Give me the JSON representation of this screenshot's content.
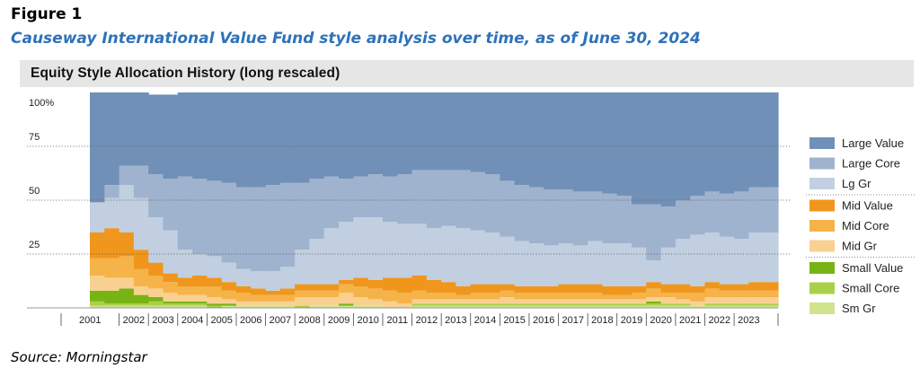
{
  "figure_label": "Figure 1",
  "figure_title": "Causeway International Value Fund style analysis over time, as of June 30, 2024",
  "source": "Source: Morningstar",
  "chart_data": {
    "type": "area",
    "stacked": true,
    "title": "Equity Style Allocation History (long rescaled)",
    "xlabel": "",
    "ylabel": "",
    "ylim": [
      0,
      100
    ],
    "y_ticks": [
      "100%",
      "75",
      "50",
      "25"
    ],
    "y_tick_values": [
      100,
      75,
      50,
      25
    ],
    "grid": "dotted horizontal at 25, 50, 75",
    "legend_position": "right",
    "years": [
      "2001",
      "2002",
      "2003",
      "2004",
      "2005",
      "2006",
      "2007",
      "2008",
      "2009",
      "2010",
      "2011",
      "2012",
      "2013",
      "2014",
      "2015",
      "2016",
      "2017",
      "2018",
      "2019",
      "2020",
      "2021",
      "2022",
      "2023"
    ],
    "x": [
      "2001.0",
      "2001.5",
      "2002.0",
      "2002.5",
      "2003.0",
      "2003.5",
      "2004.0",
      "2004.5",
      "2005.0",
      "2005.5",
      "2006.0",
      "2006.5",
      "2007.0",
      "2007.5",
      "2008.0",
      "2008.5",
      "2009.0",
      "2009.5",
      "2010.0",
      "2010.5",
      "2011.0",
      "2011.5",
      "2012.0",
      "2012.5",
      "2013.0",
      "2013.5",
      "2014.0",
      "2014.5",
      "2015.0",
      "2015.5",
      "2016.0",
      "2016.5",
      "2017.0",
      "2017.5",
      "2018.0",
      "2018.5",
      "2019.0",
      "2019.5",
      "2020.0",
      "2020.5",
      "2021.0",
      "2021.5",
      "2022.0",
      "2022.5",
      "2023.0",
      "2023.5",
      "2024.0"
    ],
    "series": [
      {
        "name": "Large Value",
        "color": "#7190b8",
        "values": [
          51,
          43,
          34,
          34,
          37,
          39,
          39,
          40,
          41,
          42,
          44,
          44,
          43,
          42,
          42,
          40,
          39,
          40,
          39,
          38,
          39,
          38,
          36,
          36,
          36,
          36,
          37,
          38,
          41,
          43,
          44,
          45,
          45,
          46,
          46,
          47,
          48,
          52,
          52,
          53,
          50,
          48,
          46,
          47,
          46,
          44,
          44
        ]
      },
      {
        "name": "Large Core",
        "color": "#9fb3cf",
        "values": [
          0,
          6,
          9,
          15,
          20,
          24,
          34,
          35,
          35,
          37,
          38,
          39,
          40,
          39,
          31,
          28,
          24,
          20,
          19,
          20,
          21,
          23,
          25,
          27,
          26,
          27,
          27,
          27,
          26,
          26,
          26,
          26,
          25,
          25,
          23,
          23,
          22,
          20,
          26,
          19,
          18,
          18,
          19,
          20,
          22,
          21,
          21
        ]
      },
      {
        "name": "Lg Gr",
        "color": "#c2cfe0",
        "values": [
          14,
          14,
          22,
          24,
          21,
          20,
          13,
          10,
          10,
          9,
          8,
          8,
          9,
          10,
          16,
          21,
          26,
          27,
          28,
          29,
          26,
          25,
          24,
          24,
          26,
          27,
          25,
          24,
          22,
          21,
          20,
          19,
          19,
          18,
          20,
          20,
          20,
          18,
          10,
          17,
          21,
          24,
          23,
          22,
          21,
          23,
          23
        ]
      },
      {
        "name": "Mid Value",
        "color": "#f0961c",
        "values": [
          12,
          14,
          11,
          9,
          6,
          4,
          4,
          5,
          4,
          4,
          3,
          3,
          2,
          3,
          3,
          3,
          3,
          2,
          4,
          4,
          6,
          7,
          7,
          6,
          5,
          4,
          4,
          4,
          3,
          3,
          3,
          3,
          4,
          4,
          4,
          4,
          4,
          3,
          3,
          4,
          4,
          3,
          3,
          3,
          3,
          4,
          4
        ]
      },
      {
        "name": "Mid Core",
        "color": "#f5b34a",
        "values": [
          8,
          9,
          10,
          8,
          6,
          5,
          4,
          4,
          5,
          4,
          4,
          3,
          3,
          3,
          3,
          3,
          3,
          4,
          5,
          5,
          5,
          5,
          4,
          3,
          3,
          2,
          3,
          3,
          3,
          3,
          3,
          3,
          3,
          3,
          3,
          2,
          2,
          3,
          4,
          2,
          3,
          4,
          4,
          3,
          3,
          3,
          3
        ]
      },
      {
        "name": "Mid Gr",
        "color": "#f8d191",
        "values": [
          7,
          6,
          5,
          4,
          4,
          4,
          3,
          3,
          3,
          2,
          2,
          2,
          2,
          2,
          4,
          4,
          4,
          5,
          4,
          3,
          3,
          2,
          2,
          2,
          2,
          2,
          2,
          2,
          3,
          2,
          2,
          2,
          2,
          2,
          2,
          2,
          2,
          2,
          2,
          3,
          2,
          2,
          3,
          3,
          3,
          3,
          3
        ]
      },
      {
        "name": "Small Value",
        "color": "#78b314",
        "values": [
          5,
          6,
          7,
          4,
          2,
          1,
          1,
          1,
          1,
          1,
          0,
          0,
          0,
          0,
          0,
          0,
          0,
          1,
          0,
          0,
          0,
          0,
          0,
          0,
          0,
          0,
          0,
          0,
          0,
          0,
          0,
          0,
          0,
          0,
          0,
          0,
          0,
          0,
          1,
          0,
          0,
          0,
          0,
          0,
          0,
          0,
          0
        ]
      },
      {
        "name": "Small Core",
        "color": "#a9d04a",
        "values": [
          2,
          1,
          1,
          1,
          2,
          1,
          1,
          1,
          1,
          0,
          0,
          0,
          0,
          0,
          1,
          0,
          0,
          0,
          0,
          0,
          0,
          0,
          1,
          1,
          1,
          1,
          1,
          1,
          1,
          1,
          1,
          1,
          1,
          1,
          1,
          1,
          1,
          1,
          1,
          1,
          1,
          0,
          1,
          1,
          1,
          1,
          1
        ]
      },
      {
        "name": "Sm Gr",
        "color": "#d0e490",
        "values": [
          1,
          1,
          1,
          1,
          1,
          1,
          1,
          1,
          0,
          1,
          1,
          1,
          1,
          1,
          0,
          1,
          1,
          1,
          1,
          1,
          0,
          0,
          1,
          1,
          1,
          1,
          1,
          1,
          1,
          1,
          1,
          1,
          1,
          1,
          1,
          1,
          1,
          1,
          1,
          1,
          1,
          1,
          1,
          1,
          1,
          1,
          1
        ]
      }
    ]
  }
}
